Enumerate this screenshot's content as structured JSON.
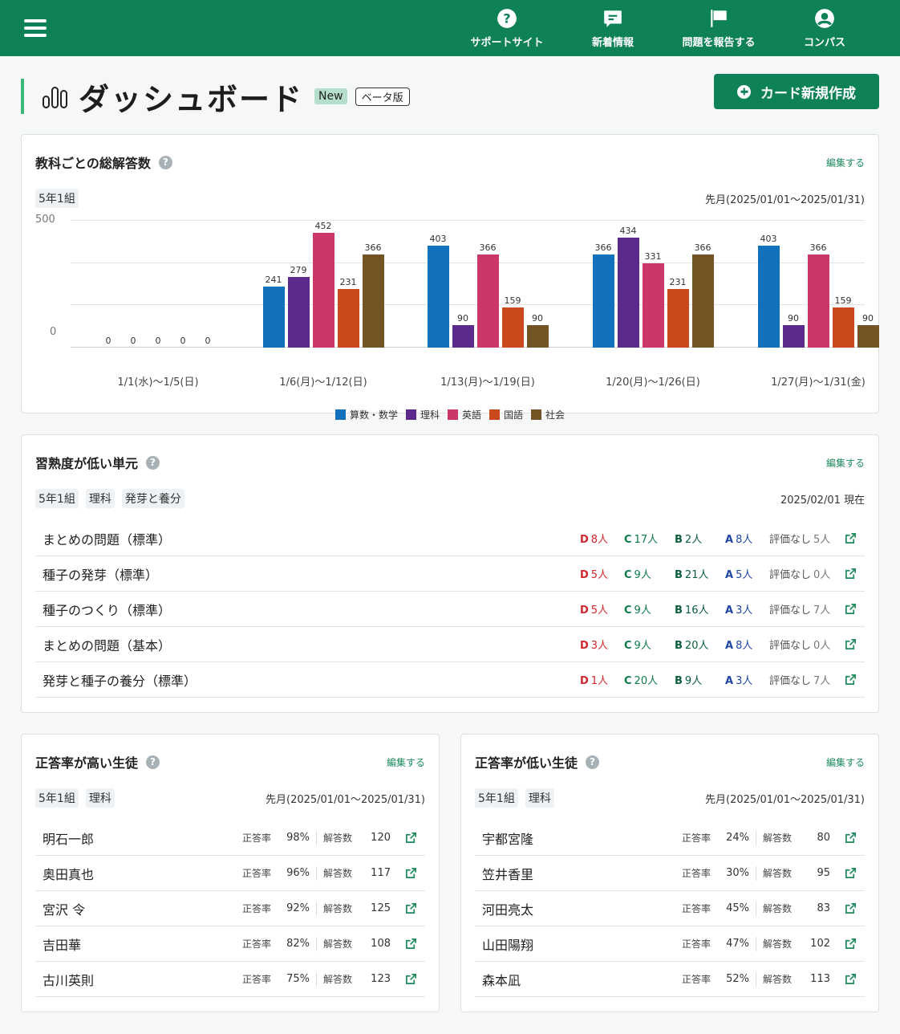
{
  "topbar": {
    "nav": [
      {
        "label": "サポートサイト",
        "icon": "help-circle-icon"
      },
      {
        "label": "新着情報",
        "icon": "message-icon"
      },
      {
        "label": "問題を報告する",
        "icon": "flag-icon"
      },
      {
        "label": "コンパス",
        "icon": "account-icon"
      }
    ]
  },
  "header": {
    "title": "ダッシュボード",
    "badge_new": "New",
    "badge_beta": "ベータ版",
    "create_button": "カード新規作成"
  },
  "cards": {
    "total_answers": {
      "title": "教科ごとの総解答数",
      "edit": "編集する",
      "tags": [
        "5年1組"
      ],
      "period": "先月(2025/01/01〜2025/01/31)"
    },
    "low_mastery": {
      "title": "習熟度が低い単元",
      "edit": "編集する",
      "tags": [
        "5年1組",
        "理科",
        "発芽と養分"
      ],
      "period": "2025/02/01 現在",
      "rows": [
        {
          "name": "まとめの問題（標準）",
          "D": "8人",
          "C": "17人",
          "B": "2人",
          "A": "8人",
          "none": "5人"
        },
        {
          "name": "種子の発芽（標準）",
          "D": "5人",
          "C": "9人",
          "B": "21人",
          "A": "5人",
          "none": "0人"
        },
        {
          "name": "種子のつくり（標準）",
          "D": "5人",
          "C": "9人",
          "B": "16人",
          "A": "3人",
          "none": "7人"
        },
        {
          "name": "まとめの問題（基本）",
          "D": "3人",
          "C": "9人",
          "B": "20人",
          "A": "8人",
          "none": "0人"
        },
        {
          "name": "発芽と種子の養分（標準）",
          "D": "1人",
          "C": "20人",
          "B": "9人",
          "A": "3人",
          "none": "7人"
        }
      ],
      "labels": {
        "D": "D",
        "C": "C",
        "B": "B",
        "A": "A",
        "none": "評価なし"
      }
    },
    "high_students": {
      "title": "正答率が高い生徒",
      "edit": "編集する",
      "tags": [
        "5年1組",
        "理科"
      ],
      "period": "先月(2025/01/01〜2025/01/31)",
      "rate_label": "正答率",
      "count_label": "解答数",
      "rows": [
        {
          "name": "明石一郎",
          "rate": "98%",
          "count": "120"
        },
        {
          "name": "奥田真也",
          "rate": "96%",
          "count": "117"
        },
        {
          "name": "宮沢 令",
          "rate": "92%",
          "count": "125"
        },
        {
          "name": "吉田華",
          "rate": "82%",
          "count": "108"
        },
        {
          "name": "古川英則",
          "rate": "75%",
          "count": "123"
        }
      ]
    },
    "low_students": {
      "title": "正答率が低い生徒",
      "edit": "編集する",
      "tags": [
        "5年1組",
        "理科"
      ],
      "period": "先月(2025/01/01〜2025/01/31)",
      "rate_label": "正答率",
      "count_label": "解答数",
      "rows": [
        {
          "name": "宇都宮隆",
          "rate": "24%",
          "count": "80"
        },
        {
          "name": "笠井香里",
          "rate": "30%",
          "count": "95"
        },
        {
          "name": "河田亮太",
          "rate": "45%",
          "count": "83"
        },
        {
          "name": "山田陽翔",
          "rate": "47%",
          "count": "102"
        },
        {
          "name": "森本凪",
          "rate": "52%",
          "count": "113"
        }
      ]
    }
  },
  "colors": {
    "brand": "#0e8157",
    "math": "#1172bb",
    "science": "#5b2a8c",
    "english": "#cc3769",
    "japanese": "#c9481c",
    "social": "#735425"
  },
  "chart_data": {
    "type": "bar",
    "title": "教科ごとの総解答数",
    "categories": [
      "1/1(水)〜1/5(日)",
      "1/6(月)〜1/12(日)",
      "1/13(月)〜1/19(日)",
      "1/20(月)〜1/26(日)",
      "1/27(月)〜1/31(金)"
    ],
    "series": [
      {
        "name": "算数・数学",
        "color": "#1172bb",
        "values": [
          0,
          241,
          403,
          366,
          403
        ]
      },
      {
        "name": "理科",
        "color": "#5b2a8c",
        "values": [
          0,
          279,
          90,
          434,
          90
        ]
      },
      {
        "name": "英語",
        "color": "#cc3769",
        "values": [
          0,
          452,
          366,
          331,
          366
        ]
      },
      {
        "name": "国語",
        "color": "#c9481c",
        "values": [
          0,
          231,
          159,
          231,
          159
        ]
      },
      {
        "name": "社会",
        "color": "#735425",
        "values": [
          0,
          366,
          90,
          366,
          90
        ]
      }
    ],
    "yticks": [
      0,
      500
    ],
    "ylim": [
      0,
      500
    ],
    "grid": true,
    "legend_position": "bottom",
    "xlabel": "",
    "ylabel": ""
  }
}
